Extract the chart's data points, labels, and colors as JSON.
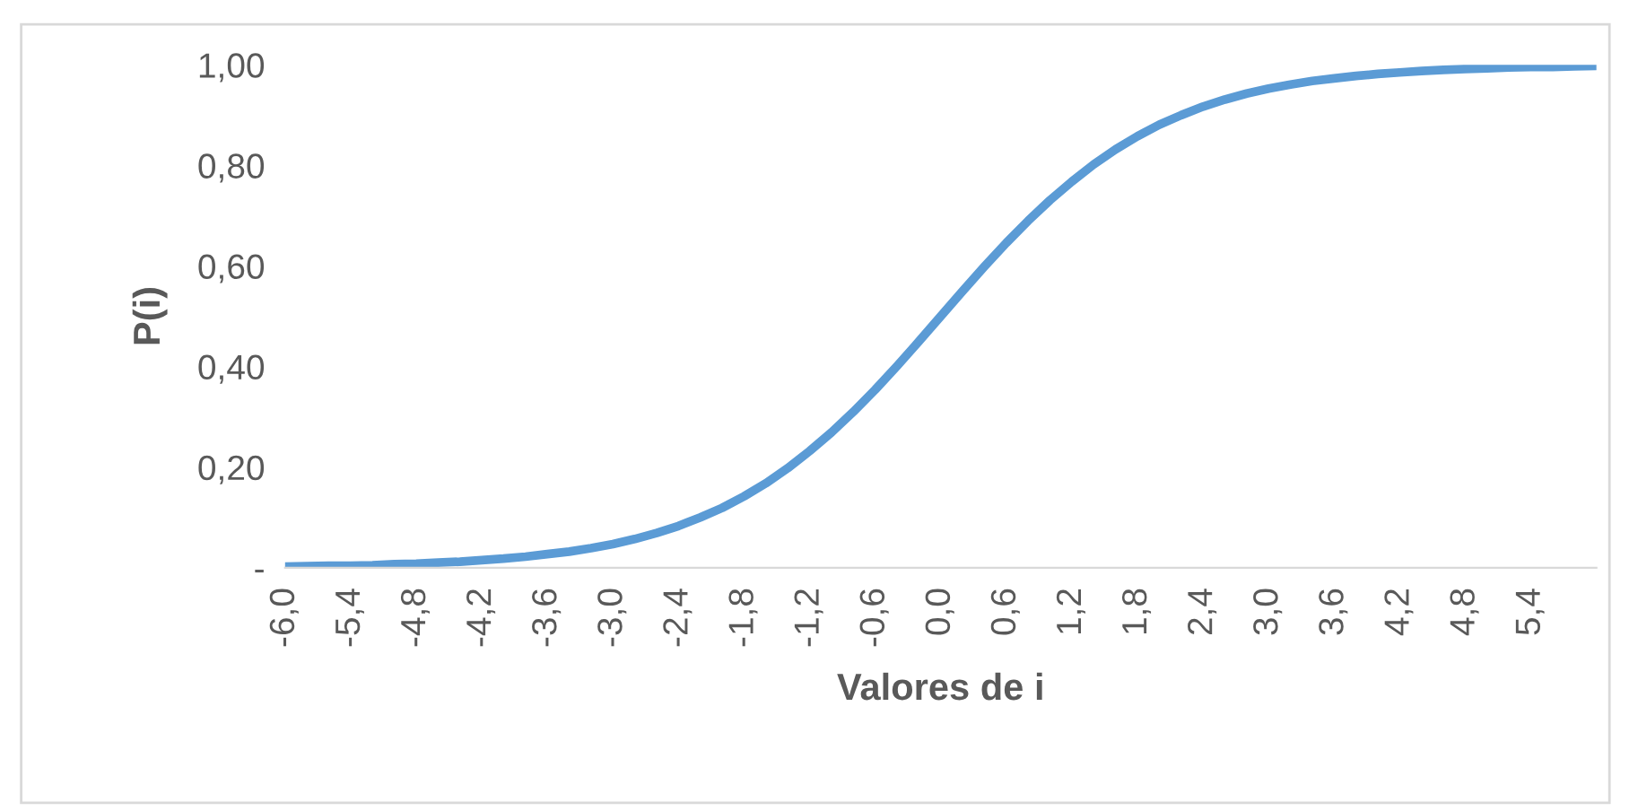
{
  "chart_data": {
    "type": "line",
    "xlabel": "Valores de i",
    "ylabel": "P(i)",
    "categories": [
      "-6,0",
      null,
      null,
      "-5,4",
      null,
      null,
      "-4,8",
      null,
      null,
      "-4,2",
      null,
      null,
      "-3,6",
      null,
      null,
      "-3,0",
      null,
      null,
      "-2,4",
      null,
      null,
      "-1,8",
      null,
      null,
      "-1,2",
      null,
      null,
      "-0,6",
      null,
      null,
      "0,0",
      null,
      null,
      "0,6",
      null,
      null,
      "1,2",
      null,
      null,
      "1,8",
      null,
      null,
      "2,4",
      null,
      null,
      "3,0",
      null,
      null,
      "3,6",
      null,
      null,
      "4,2",
      null,
      null,
      "4,8",
      null,
      null,
      "5,4",
      null,
      null,
      null
    ],
    "series": [
      {
        "color": "#5b9bd5",
        "values": [
          0.002,
          0.003,
          0.004,
          0.004,
          0.005,
          0.007,
          0.008,
          0.01,
          0.012,
          0.015,
          0.018,
          0.022,
          0.027,
          0.032,
          0.039,
          0.047,
          0.057,
          0.069,
          0.083,
          0.1,
          0.119,
          0.142,
          0.168,
          0.198,
          0.232,
          0.269,
          0.31,
          0.354,
          0.401,
          0.45,
          0.5,
          0.55,
          0.599,
          0.646,
          0.69,
          0.731,
          0.768,
          0.802,
          0.832,
          0.858,
          0.881,
          0.9,
          0.917,
          0.931,
          0.943,
          0.953,
          0.961,
          0.968,
          0.973,
          0.978,
          0.982,
          0.985,
          0.988,
          0.99,
          0.992,
          0.993,
          0.995,
          0.996,
          0.996,
          0.997,
          0.998
        ]
      }
    ],
    "ylim": [
      0,
      1
    ],
    "yticks": [
      {
        "value": 0,
        "label": "-"
      },
      {
        "value": 0.2,
        "label": "0,20"
      },
      {
        "value": 0.4,
        "label": "0,40"
      },
      {
        "value": 0.6,
        "label": "0,60"
      },
      {
        "value": 0.8,
        "label": "0,80"
      },
      {
        "value": 1,
        "label": "1,00"
      }
    ],
    "grid": false,
    "legend": false,
    "marker": "none",
    "line_style": "solid"
  }
}
